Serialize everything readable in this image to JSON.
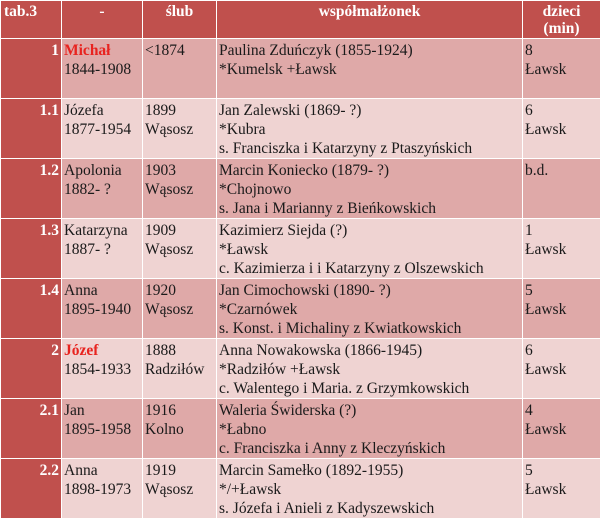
{
  "header": {
    "index": "tab.3",
    "name": "-",
    "marriage": "ślub",
    "spouse": "współmałżonek",
    "children_line1": "dzieci",
    "children_line2": "(min)"
  },
  "rows": [
    {
      "index": "1",
      "name": "Michał",
      "years": "1844-1908",
      "marriage_year": "<1874",
      "marriage_place": "",
      "spouse": "Paulina Zduńczyk (1855-1924)",
      "spouse_detail": "*Kumelsk +Ławsk",
      "spouse_parents": "",
      "children": "8",
      "children_place": "Ławsk",
      "highlight": true
    },
    {
      "index": "1.1",
      "name": "Józefa",
      "years": "1877-1954",
      "marriage_year": "1899",
      "marriage_place": "Wąsosz",
      "spouse": "Jan Zalewski (1869- ?)",
      "spouse_detail": "*Kubra",
      "spouse_parents": "s. Franciszka i Katarzyny z Ptaszyńskich",
      "children": "6",
      "children_place": "Ławsk",
      "highlight": false
    },
    {
      "index": "1.2",
      "name": "Apolonia",
      "years": "1882- ?",
      "marriage_year": "1903",
      "marriage_place": "Wąsosz",
      "spouse": "Marcin Koniecko (1879- ?)",
      "spouse_detail": "*Chojnowo",
      "spouse_parents": "s. Jana i Marianny z Bieńkowskich",
      "children": "b.d.",
      "children_place": "",
      "highlight": false
    },
    {
      "index": "1.3",
      "name": "Katarzyna",
      "years": "1887- ?",
      "marriage_year": "1909",
      "marriage_place": "Wąsosz",
      "spouse": "Kazimierz Siejda (?)",
      "spouse_detail": "*Ławsk",
      "spouse_parents": "c. Kazimierza i i Katarzyny z Olszewskich",
      "children": "1",
      "children_place": "Ławsk",
      "highlight": false
    },
    {
      "index": "1.4",
      "name": "Anna",
      "years": "1895-1940",
      "marriage_year": "1920",
      "marriage_place": "Wąsosz",
      "spouse": "Jan Cimochowski (1890- ?)",
      "spouse_detail": "*Czarnówek",
      "spouse_parents": "s. Konst. i Michaliny z Kwiatkowskich",
      "children": "5",
      "children_place": "Ławsk",
      "highlight": false
    },
    {
      "index": "2",
      "name": "Józef",
      "years": "1854-1933",
      "marriage_year": "1888",
      "marriage_place": "Radziłów",
      "spouse": "Anna Nowakowska (1866-1945)",
      "spouse_detail": "*Radziłów +Ławsk",
      "spouse_parents": "c. Walentego i Maria. z Grzymkowskich",
      "children": "6",
      "children_place": "Ławsk",
      "highlight": true
    },
    {
      "index": "2.1",
      "name": "Jan",
      "years": "1895-1958",
      "marriage_year": "1916",
      "marriage_place": "Kolno",
      "spouse": "Waleria Świderska (?)",
      "spouse_detail": "*Łabno",
      "spouse_parents": "c. Franciszka i Anny z Kleczyńskich",
      "children": "4",
      "children_place": "Ławsk",
      "highlight": false
    },
    {
      "index": "2.2",
      "name": "Anna",
      "years": "1898-1973",
      "marriage_year": "1919",
      "marriage_place": "Wąsosz",
      "spouse": "Marcin Samełko (1892-1955)",
      "spouse_detail": "*/+Ławsk",
      "spouse_parents": "s. Józefa i Anieli z Kadyszewskich",
      "children": "5",
      "children_place": "Ławsk",
      "highlight": false
    }
  ],
  "colors": {
    "header_bg": "#c0504d",
    "row_dark": "#dfa9a8",
    "row_light": "#efd3d2",
    "highlight_text": "#e8231f"
  }
}
